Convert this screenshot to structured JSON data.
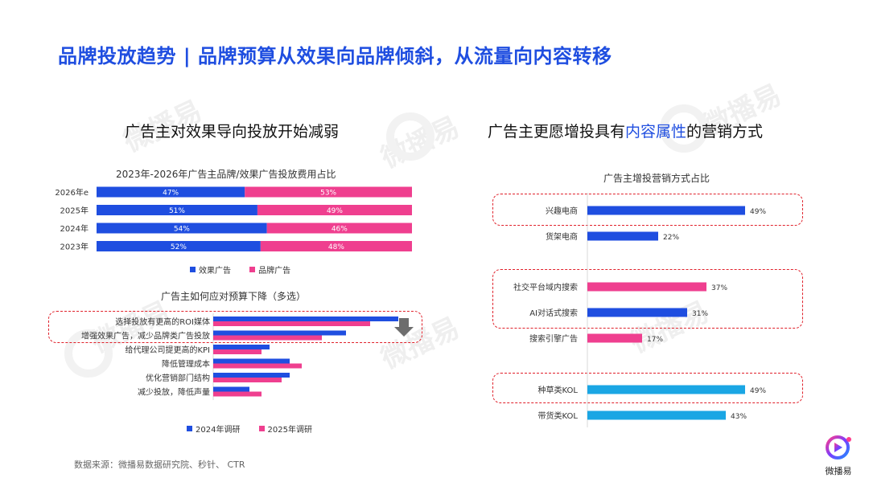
{
  "page": {
    "title": "品牌投放趋势 | 品牌预算从效果向品牌倾斜，从流量向内容转移",
    "left_heading": "广告主对效果导向投放开始减弱",
    "right_heading_pre": "广告主更愿增投具有",
    "right_heading_hl": "内容属性",
    "right_heading_post": "的营销方式",
    "source": "数据来源：微播易数据研究院、秒针、 CTR",
    "logo_text": "微播易",
    "watermark_text": "微播易"
  },
  "colors": {
    "title_blue": "#1f4ee0",
    "bar_blue": "#1f4ee0",
    "bar_pink": "#ef3f8f",
    "bar_cyan": "#1aa6e4",
    "dash_red": "#e0202a"
  },
  "chart_data": [
    {
      "type": "bar",
      "orientation": "horizontal",
      "stacked": "percent",
      "title": "2023年-2026年广告主品牌/效果广告投放费用占比",
      "categories": [
        "2026年e",
        "2025年",
        "2024年",
        "2023年"
      ],
      "series": [
        {
          "name": "效果广告",
          "values": [
            47,
            51,
            54,
            52
          ],
          "labels": [
            "47%",
            "51%",
            "54%",
            "52%"
          ],
          "color": "#1f4ee0"
        },
        {
          "name": "品牌广告",
          "values": [
            53,
            49,
            46,
            48
          ],
          "labels": [
            "53%",
            "49%",
            "46%",
            "48%"
          ],
          "color": "#ef3f8f"
        }
      ],
      "legend": "bottom"
    },
    {
      "type": "bar",
      "orientation": "horizontal",
      "title": "广告主如何应对预算下降（多选）",
      "categories": [
        "选择投放有更高的ROI媒体",
        "增强效果广告，减少品牌类广告投放",
        "给代理公司提更高的KPI",
        "降低管理成本",
        "优化营销部门结构",
        "减少投放，降低声量"
      ],
      "series": [
        {
          "name": "2024年调研",
          "values": [
            46,
            33,
            14,
            19,
            19,
            9
          ],
          "color": "#1f4ee0"
        },
        {
          "name": "2025年调研",
          "values": [
            39,
            27,
            12,
            22,
            17,
            12
          ],
          "color": "#ef3f8f"
        }
      ],
      "xlim": [
        0,
        50
      ],
      "legend": "bottom"
    },
    {
      "type": "bar",
      "orientation": "horizontal",
      "title": "广告主增投营销方式占比",
      "categories": [
        "兴趣电商",
        "货架电商",
        "社交平台域内搜索",
        "AI对话式搜索",
        "搜索引擎广告",
        "种草类KOL",
        "带货类KOL"
      ],
      "values": [
        49,
        22,
        37,
        31,
        17,
        49,
        43
      ],
      "labels": [
        "49%",
        "22%",
        "37%",
        "31%",
        "17%",
        "49%",
        "43%"
      ],
      "colors": [
        "#1f4ee0",
        "#1f4ee0",
        "#ef3f8f",
        "#1f4ee0",
        "#ef3f8f",
        "#1aa6e4",
        "#1aa6e4"
      ],
      "xlim": [
        0,
        60
      ]
    }
  ]
}
